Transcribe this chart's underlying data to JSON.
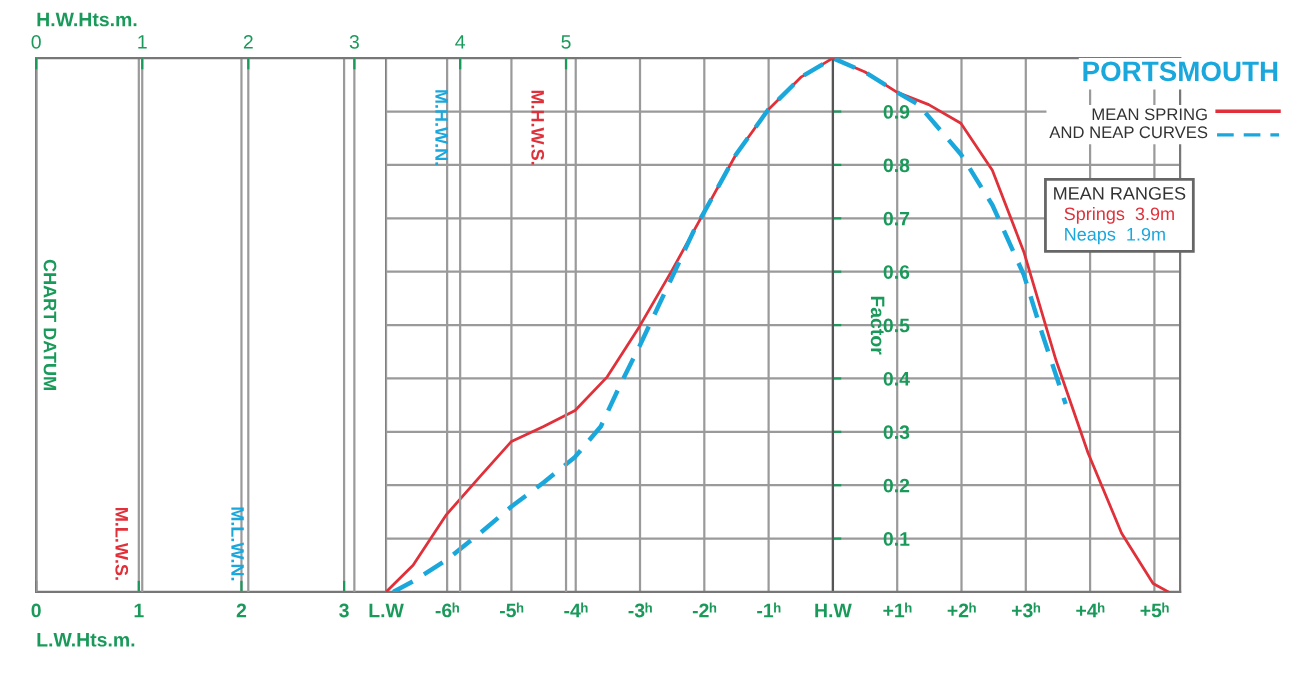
{
  "chart_data": [
    {
      "type": "line",
      "xlabel": "L.W.Hts.m.",
      "xlim": [
        0,
        3.41
      ],
      "xticks": [
        0,
        1,
        2,
        3
      ],
      "ylim": [
        0,
        1
      ],
      "x2label": "H.W.Hts.m.",
      "x2lim": [
        0,
        3.3
      ],
      "x2ticks": [
        0,
        1,
        2,
        3
      ],
      "tick_labels": "x",
      "grid": true,
      "annotations": [
        "CHART DATUM",
        "M.L.W.S.",
        "M.L.W.N."
      ]
    },
    {
      "type": "line",
      "title": "PORTSMOUTH",
      "xlim": [
        -6.95,
        5.4
      ],
      "ylim": [
        0,
        1
      ],
      "xticks": [
        {
          "value": -6.95,
          "label": "L.W"
        },
        {
          "value": -6,
          "label": "-6ʰ"
        },
        {
          "value": -5,
          "label": "-5ʰ"
        },
        {
          "value": -4,
          "label": "-4ʰ"
        },
        {
          "value": -3,
          "label": "-3ʰ"
        },
        {
          "value": -2,
          "label": "-2ʰ"
        },
        {
          "value": -1,
          "label": "-1ʰ"
        },
        {
          "value": 0,
          "label": "H.W"
        },
        {
          "value": 1,
          "label": "+1ʰ"
        },
        {
          "value": 2,
          "label": "+2ʰ"
        },
        {
          "value": 3,
          "label": "+3ʰ"
        },
        {
          "value": 4,
          "label": "+4ʰ"
        },
        {
          "value": 5,
          "label": "+5ʰ"
        }
      ],
      "yticks": [
        0.1,
        0.2,
        0.3,
        0.4,
        0.5,
        0.6,
        0.7,
        0.8,
        0.9
      ],
      "ylabel": "Factor",
      "x2lim": [
        3.3,
        10.8
      ],
      "x2ticks": [
        4,
        5
      ],
      "legend_title": "MEAN RANGES",
      "legend": "right",
      "grid": true,
      "series": [
        {
          "name": "Springs  3.9m",
          "color": "#e0303a",
          "line_style": "solid",
          "x": [
            -6.95,
            -6.53,
            -6.01,
            -5.49,
            -5.0,
            -4.5,
            -4.01,
            -3.51,
            -3.01,
            -2.5,
            -2.0,
            -1.51,
            -1.01,
            -0.49,
            0,
            0.5,
            1.0,
            1.49,
            1.99,
            2.48,
            2.97,
            3.47,
            3.97,
            4.49,
            4.98,
            5.22
          ],
          "values": [
            0,
            0.05,
            0.145,
            0.216,
            0.282,
            0.31,
            0.34,
            0.403,
            0.497,
            0.603,
            0.712,
            0.819,
            0.903,
            0.965,
            1.0,
            0.974,
            0.936,
            0.913,
            0.878,
            0.79,
            0.637,
            0.434,
            0.26,
            0.11,
            0.016,
            0
          ]
        },
        {
          "name": "Neaps  1.9m",
          "color": "#1aa7dc",
          "line_style": "dashed",
          "x": [
            -6.84,
            -6.53,
            -6.01,
            -5.49,
            -5.0,
            -4.5,
            -4.01,
            -3.61,
            -3.3,
            -3.01,
            -2.5,
            -2.15,
            -2.0,
            -1.51,
            -1.01,
            -0.49,
            0,
            0.5,
            1.0,
            1.33,
            1.99,
            2.48,
            2.97,
            3.26,
            3.62
          ],
          "values": [
            0,
            0.02,
            0.06,
            0.11,
            0.16,
            0.205,
            0.253,
            0.31,
            0.39,
            0.46,
            0.59,
            0.68,
            0.712,
            0.819,
            0.903,
            0.965,
            1.0,
            0.974,
            0.936,
            0.913,
            0.82,
            0.725,
            0.594,
            0.482,
            0.352
          ]
        }
      ],
      "annotations": [
        "MEAN SPRING\nAND NEAP CURVES",
        "M.H.W.N.",
        "M.H.W.S."
      ]
    }
  ]
}
